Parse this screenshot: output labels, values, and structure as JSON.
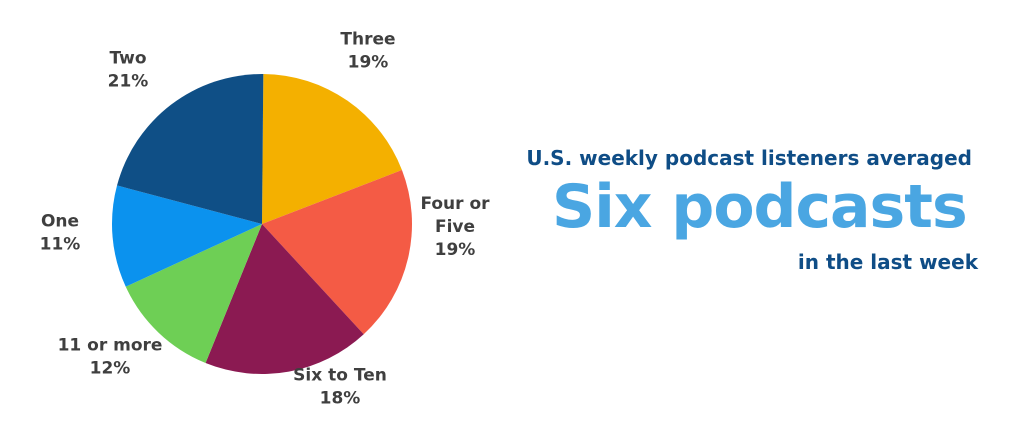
{
  "headline": {
    "line1": "U.S. weekly podcast listeners averaged",
    "line2": "Six podcasts",
    "line3": "in the last week"
  },
  "chart_data": {
    "type": "pie",
    "title": "",
    "slices": [
      {
        "label": [
          "Three"
        ],
        "value": 19,
        "value_label": "19%",
        "color": "#f4b000"
      },
      {
        "label": [
          "Four or",
          "Five"
        ],
        "value": 19,
        "value_label": "19%",
        "color": "#f45b45"
      },
      {
        "label": [
          "Six to Ten"
        ],
        "value": 18,
        "value_label": "18%",
        "color": "#8b1a52"
      },
      {
        "label": [
          "11 or more"
        ],
        "value": 12,
        "value_label": "12%",
        "color": "#6ecf55"
      },
      {
        "label": [
          "One"
        ],
        "value": 11,
        "value_label": "11%",
        "color": "#0b92ee"
      },
      {
        "label": [
          "Two"
        ],
        "value": 21,
        "value_label": "21%",
        "color": "#0f4f86"
      }
    ]
  }
}
